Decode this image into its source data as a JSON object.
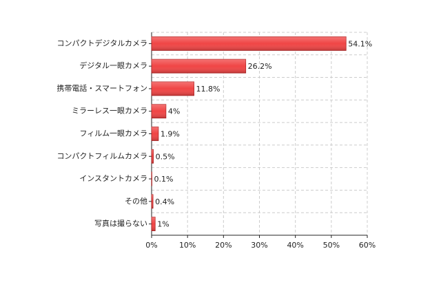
{
  "chart_data": {
    "type": "bar",
    "orientation": "horizontal",
    "categories": [
      "コンパクトデジタルカメラ",
      "デジタル一眼カメラ",
      "携帯電話・スマートフォン",
      "ミラーレス一眼カメラ",
      "フィルム一眼カメラ",
      "コンパクトフィルムカメラ",
      "インスタントカメラ",
      "その他",
      "写真は撮らない"
    ],
    "values": [
      54.1,
      26.2,
      11.8,
      4,
      1.9,
      0.5,
      0.1,
      0.4,
      1
    ],
    "value_labels": [
      "54.1%",
      "26.2%",
      "11.8%",
      "4%",
      "1.9%",
      "0.5%",
      "0.1%",
      "0.4%",
      "1%"
    ],
    "color": "#f04545",
    "xlim": [
      0,
      60
    ],
    "xticks": [
      {
        "value": 0,
        "label": "0%"
      },
      {
        "value": 10,
        "label": "10%"
      },
      {
        "value": 20,
        "label": "20%"
      },
      {
        "value": 30,
        "label": "30%"
      },
      {
        "value": 40,
        "label": "40%"
      },
      {
        "value": 50,
        "label": "50%"
      },
      {
        "value": 60,
        "label": "60%"
      }
    ],
    "grid": true
  }
}
